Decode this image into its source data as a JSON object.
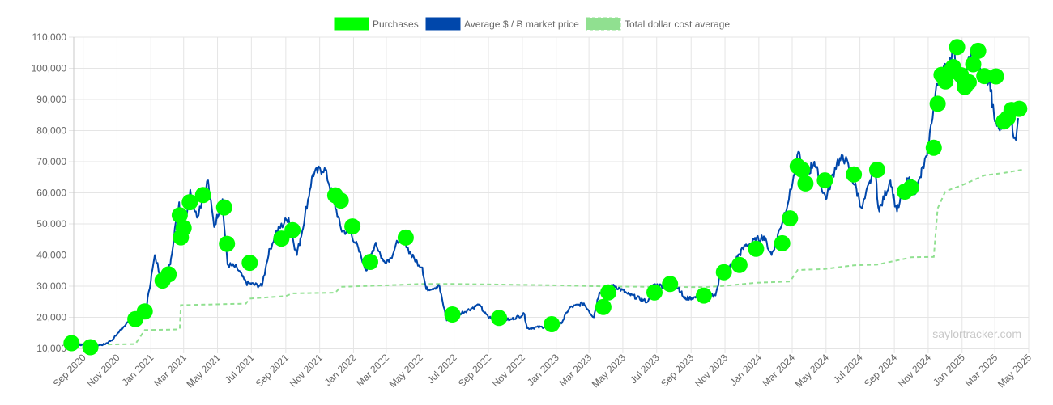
{
  "watermark": "saylortracker.com",
  "colors": {
    "purchases": "#00ff00",
    "market_price": "#0047ab",
    "cost_average": "#90e090",
    "grid": "#e5e5e5",
    "axis": "#c8c8c8",
    "text": "#666666"
  },
  "chart_data": {
    "type": "line",
    "title": "",
    "xlabel": "",
    "ylabel": "",
    "xlim": [
      "2020-08-15",
      "2025-05-01"
    ],
    "ylim": [
      10000,
      110000
    ],
    "grid": true,
    "legend_position": "top-center",
    "legend": [
      {
        "name": "Purchases",
        "swatch": "purchases"
      },
      {
        "name": "Average $ / Ƀ market price",
        "swatch": "market_price"
      },
      {
        "name": "Total dollar cost average",
        "swatch": "cost_average"
      }
    ],
    "x_ticks": [
      {
        "date": "2020-09-01",
        "label": "Sep 2020"
      },
      {
        "date": "2020-11-01",
        "label": "Nov 2020"
      },
      {
        "date": "2021-01-01",
        "label": "Jan 2021"
      },
      {
        "date": "2021-03-01",
        "label": "Mar 2021"
      },
      {
        "date": "2021-05-01",
        "label": "May 2021"
      },
      {
        "date": "2021-07-01",
        "label": "Jul 2021"
      },
      {
        "date": "2021-09-01",
        "label": "Sep 2021"
      },
      {
        "date": "2021-11-01",
        "label": "Nov 2021"
      },
      {
        "date": "2022-01-01",
        "label": "Jan 2022"
      },
      {
        "date": "2022-03-01",
        "label": "Mar 2022"
      },
      {
        "date": "2022-05-01",
        "label": "May 2022"
      },
      {
        "date": "2022-07-01",
        "label": "Jul 2022"
      },
      {
        "date": "2022-09-01",
        "label": "Sep 2022"
      },
      {
        "date": "2022-11-01",
        "label": "Nov 2022"
      },
      {
        "date": "2023-01-01",
        "label": "Jan 2023"
      },
      {
        "date": "2023-03-01",
        "label": "Mar 2023"
      },
      {
        "date": "2023-05-01",
        "label": "May 2023"
      },
      {
        "date": "2023-07-01",
        "label": "Jul 2023"
      },
      {
        "date": "2023-09-01",
        "label": "Sep 2023"
      },
      {
        "date": "2023-11-01",
        "label": "Nov 2023"
      },
      {
        "date": "2024-01-01",
        "label": "Jan 2024"
      },
      {
        "date": "2024-03-01",
        "label": "Mar 2024"
      },
      {
        "date": "2024-05-01",
        "label": "May 2024"
      },
      {
        "date": "2024-07-01",
        "label": "Jul 2024"
      },
      {
        "date": "2024-09-01",
        "label": "Sep 2024"
      },
      {
        "date": "2024-11-01",
        "label": "Nov 2024"
      },
      {
        "date": "2025-01-01",
        "label": "Jan 2025"
      },
      {
        "date": "2025-03-01",
        "label": "Mar 2025"
      },
      {
        "date": "2025-05-01",
        "label": "May 2025"
      }
    ],
    "y_ticks": [
      {
        "value": 10000,
        "label": "10,000"
      },
      {
        "value": 20000,
        "label": "20,000"
      },
      {
        "value": 30000,
        "label": "30,000"
      },
      {
        "value": 40000,
        "label": "40,000"
      },
      {
        "value": 50000,
        "label": "50,000"
      },
      {
        "value": 60000,
        "label": "60,000"
      },
      {
        "value": 70000,
        "label": "70,000"
      },
      {
        "value": 80000,
        "label": "80,000"
      },
      {
        "value": 90000,
        "label": "90,000"
      },
      {
        "value": 100000,
        "label": "100,000"
      },
      {
        "value": 110000,
        "label": "110,000"
      }
    ],
    "series": [
      {
        "name": "Average $ / Ƀ market price",
        "style": "line",
        "points": [
          [
            "2020-08-11",
            11500
          ],
          [
            "2020-09-15",
            10700
          ],
          [
            "2020-10-10",
            11300
          ],
          [
            "2020-10-25",
            13000
          ],
          [
            "2020-11-20",
            18500
          ],
          [
            "2020-12-10",
            18500
          ],
          [
            "2020-12-25",
            24000
          ],
          [
            "2021-01-08",
            40000
          ],
          [
            "2021-01-22",
            31000
          ],
          [
            "2021-02-05",
            37000
          ],
          [
            "2021-02-21",
            57000
          ],
          [
            "2021-02-28",
            45000
          ],
          [
            "2021-03-13",
            61000
          ],
          [
            "2021-03-25",
            52000
          ],
          [
            "2021-04-14",
            64000
          ],
          [
            "2021-04-25",
            49000
          ],
          [
            "2021-05-10",
            58000
          ],
          [
            "2021-05-19",
            37000
          ],
          [
            "2021-06-05",
            36000
          ],
          [
            "2021-06-22",
            31000
          ],
          [
            "2021-07-20",
            30000
          ],
          [
            "2021-08-01",
            40000
          ],
          [
            "2021-08-14",
            47000
          ],
          [
            "2021-09-06",
            52000
          ],
          [
            "2021-09-21",
            40000
          ],
          [
            "2021-10-01",
            48000
          ],
          [
            "2021-10-20",
            66000
          ],
          [
            "2021-11-10",
            68000
          ],
          [
            "2021-11-28",
            57000
          ],
          [
            "2021-12-10",
            48000
          ],
          [
            "2021-12-28",
            47000
          ],
          [
            "2022-01-10",
            42000
          ],
          [
            "2022-01-24",
            35000
          ],
          [
            "2022-02-10",
            44000
          ],
          [
            "2022-02-24",
            38000
          ],
          [
            "2022-03-10",
            39000
          ],
          [
            "2022-03-28",
            47000
          ],
          [
            "2022-04-15",
            40000
          ],
          [
            "2022-05-05",
            36000
          ],
          [
            "2022-05-12",
            29000
          ],
          [
            "2022-06-05",
            30000
          ],
          [
            "2022-06-18",
            19000
          ],
          [
            "2022-07-10",
            21000
          ],
          [
            "2022-08-15",
            24000
          ],
          [
            "2022-09-01",
            20000
          ],
          [
            "2022-10-10",
            19200
          ],
          [
            "2022-11-05",
            21000
          ],
          [
            "2022-11-10",
            16500
          ],
          [
            "2022-12-15",
            17000
          ],
          [
            "2023-01-10",
            18000
          ],
          [
            "2023-01-25",
            23000
          ],
          [
            "2023-02-20",
            24500
          ],
          [
            "2023-03-10",
            20000
          ],
          [
            "2023-03-20",
            28000
          ],
          [
            "2023-04-14",
            30500
          ],
          [
            "2023-05-10",
            27500
          ],
          [
            "2023-06-15",
            25000
          ],
          [
            "2023-06-25",
            30500
          ],
          [
            "2023-07-15",
            30000
          ],
          [
            "2023-08-10",
            29500
          ],
          [
            "2023-08-20",
            26000
          ],
          [
            "2023-09-15",
            26500
          ],
          [
            "2023-10-15",
            27000
          ],
          [
            "2023-10-25",
            34000
          ],
          [
            "2023-11-15",
            37000
          ],
          [
            "2023-12-08",
            43000
          ],
          [
            "2024-01-10",
            46000
          ],
          [
            "2024-01-24",
            40000
          ],
          [
            "2024-02-15",
            52000
          ],
          [
            "2024-02-28",
            61000
          ],
          [
            "2024-03-14",
            73000
          ],
          [
            "2024-03-20",
            63000
          ],
          [
            "2024-04-10",
            70000
          ],
          [
            "2024-04-20",
            64000
          ],
          [
            "2024-05-01",
            58000
          ],
          [
            "2024-05-21",
            70000
          ],
          [
            "2024-06-05",
            71000
          ],
          [
            "2024-06-25",
            61000
          ],
          [
            "2024-07-05",
            55000
          ],
          [
            "2024-07-28",
            68000
          ],
          [
            "2024-08-05",
            54000
          ],
          [
            "2024-08-25",
            64000
          ],
          [
            "2024-09-06",
            54000
          ],
          [
            "2024-09-28",
            65000
          ],
          [
            "2024-10-10",
            60000
          ],
          [
            "2024-10-30",
            72000
          ],
          [
            "2024-11-13",
            90000
          ],
          [
            "2024-11-22",
            98000
          ],
          [
            "2024-12-05",
            100000
          ],
          [
            "2024-12-17",
            107000
          ],
          [
            "2024-12-30",
            92000
          ],
          [
            "2025-01-20",
            106000
          ],
          [
            "2025-02-05",
            98000
          ],
          [
            "2025-02-20",
            96000
          ],
          [
            "2025-02-28",
            84000
          ],
          [
            "2025-03-10",
            80000
          ],
          [
            "2025-03-25",
            87000
          ],
          [
            "2025-04-08",
            77000
          ],
          [
            "2025-04-12",
            84000
          ]
        ]
      },
      {
        "name": "Total dollar cost average",
        "style": "dashed",
        "points": [
          [
            "2020-08-11",
            11600
          ],
          [
            "2020-09-14",
            11200
          ],
          [
            "2020-12-04",
            11400
          ],
          [
            "2020-12-21",
            15900
          ],
          [
            "2021-02-22",
            16100
          ],
          [
            "2021-02-24",
            23900
          ],
          [
            "2021-06-21",
            24400
          ],
          [
            "2021-06-28",
            26000
          ],
          [
            "2021-09-01",
            26800
          ],
          [
            "2021-09-13",
            27700
          ],
          [
            "2021-11-29",
            27900
          ],
          [
            "2021-12-09",
            29800
          ],
          [
            "2022-03-20",
            30400
          ],
          [
            "2022-04-30",
            30700
          ],
          [
            "2022-06-30",
            30700
          ],
          [
            "2022-12-24",
            30300
          ],
          [
            "2023-04-05",
            29900
          ],
          [
            "2023-09-24",
            29700
          ],
          [
            "2023-11-01",
            30100
          ],
          [
            "2023-12-27",
            31100
          ],
          [
            "2024-02-26",
            31500
          ],
          [
            "2024-03-11",
            35200
          ],
          [
            "2024-04-29",
            35500
          ],
          [
            "2024-06-20",
            36700
          ],
          [
            "2024-08-01",
            36900
          ],
          [
            "2024-09-20",
            38800
          ],
          [
            "2024-10-01",
            39300
          ],
          [
            "2024-11-11",
            39400
          ],
          [
            "2024-11-18",
            55000
          ],
          [
            "2024-12-02",
            60500
          ],
          [
            "2024-12-30",
            62300
          ],
          [
            "2025-02-10",
            65600
          ],
          [
            "2025-03-15",
            66300
          ],
          [
            "2025-04-25",
            67600
          ]
        ]
      },
      {
        "name": "Purchases",
        "style": "markers",
        "points": [
          [
            "2020-08-11",
            11700
          ],
          [
            "2020-09-14",
            10400
          ],
          [
            "2020-12-04",
            19400
          ],
          [
            "2020-12-21",
            21900
          ],
          [
            "2021-01-22",
            31800
          ],
          [
            "2021-02-02",
            33800
          ],
          [
            "2021-02-22",
            52800
          ],
          [
            "2021-02-24",
            45700
          ],
          [
            "2021-03-01",
            48700
          ],
          [
            "2021-03-12",
            57000
          ],
          [
            "2021-04-05",
            59300
          ],
          [
            "2021-05-13",
            55300
          ],
          [
            "2021-05-18",
            43600
          ],
          [
            "2021-06-28",
            37500
          ],
          [
            "2021-08-24",
            45300
          ],
          [
            "2021-09-13",
            48000
          ],
          [
            "2021-11-29",
            59200
          ],
          [
            "2021-12-09",
            57500
          ],
          [
            "2021-12-30",
            49200
          ],
          [
            "2022-01-31",
            37800
          ],
          [
            "2022-04-05",
            45600
          ],
          [
            "2022-06-28",
            20900
          ],
          [
            "2022-09-20",
            19800
          ],
          [
            "2022-12-24",
            17800
          ],
          [
            "2023-03-27",
            23300
          ],
          [
            "2023-04-05",
            28000
          ],
          [
            "2023-06-27",
            28000
          ],
          [
            "2023-07-25",
            30700
          ],
          [
            "2023-09-24",
            27000
          ],
          [
            "2023-10-30",
            34500
          ],
          [
            "2023-11-27",
            36800
          ],
          [
            "2023-12-27",
            42000
          ],
          [
            "2024-02-12",
            43800
          ],
          [
            "2024-02-26",
            51800
          ],
          [
            "2024-03-11",
            68500
          ],
          [
            "2024-03-19",
            67400
          ],
          [
            "2024-03-25",
            63000
          ],
          [
            "2024-04-29",
            64000
          ],
          [
            "2024-06-20",
            65900
          ],
          [
            "2024-08-01",
            67400
          ],
          [
            "2024-09-20",
            60400
          ],
          [
            "2024-10-01",
            61700
          ],
          [
            "2024-11-11",
            74500
          ],
          [
            "2024-11-18",
            88600
          ],
          [
            "2024-11-25",
            97900
          ],
          [
            "2024-12-02",
            95800
          ],
          [
            "2024-12-09",
            98700
          ],
          [
            "2024-12-16",
            100400
          ],
          [
            "2024-12-23",
            106800
          ],
          [
            "2024-12-30",
            97800
          ],
          [
            "2025-01-06",
            94000
          ],
          [
            "2025-01-13",
            95500
          ],
          [
            "2025-01-21",
            101300
          ],
          [
            "2025-01-30",
            105600
          ],
          [
            "2025-02-10",
            97500
          ],
          [
            "2025-03-03",
            97400
          ],
          [
            "2025-03-17",
            82900
          ],
          [
            "2025-03-24",
            84000
          ],
          [
            "2025-03-31",
            86600
          ],
          [
            "2025-04-14",
            87000
          ]
        ]
      }
    ]
  }
}
